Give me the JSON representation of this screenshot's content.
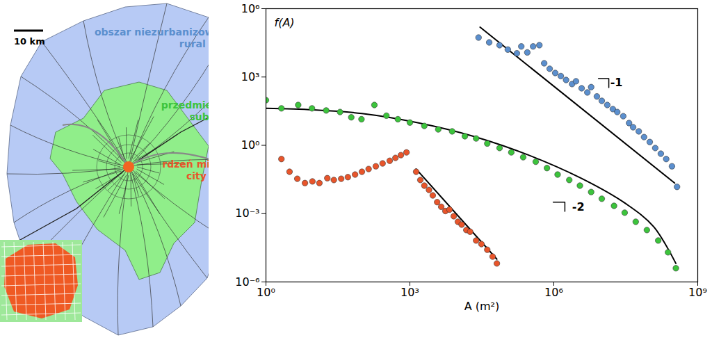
{
  "map": {
    "scale_bar": "10 km"
  },
  "chart_data": {
    "type": "scatter",
    "log": true,
    "x_label": "A (m²)",
    "y_label": "f(A)",
    "xlim": [
      1,
      1000000000.0
    ],
    "ylim": [
      1e-06,
      1000000.0
    ],
    "xticks": [
      {
        "value": 1,
        "label": "10⁰"
      },
      {
        "value": 1000,
        "label": "10³"
      },
      {
        "value": 1000000,
        "label": "10⁶"
      },
      {
        "value": 1000000000,
        "label": "10⁹"
      }
    ],
    "yticks": [
      {
        "value": 1e-06,
        "label": "10⁻⁶"
      },
      {
        "value": 0.001,
        "label": "10⁻³"
      },
      {
        "value": 1,
        "label": "10⁰"
      },
      {
        "value": 1000,
        "label": "10³"
      },
      {
        "value": 1000000,
        "label": "10⁶"
      }
    ],
    "series": [
      {
        "name": "rural area",
        "name_pl": "obszar niezurbanizowany",
        "color": "#5b8fce",
        "marker": "circle",
        "x": [
          27000.0,
          45000.0,
          74000.0,
          110000.0,
          170000.0,
          210000.0,
          280000.0,
          370000.0,
          500000.0,
          630000.0,
          820000.0,
          1070000.0,
          1400000.0,
          1800000.0,
          2400000.0,
          2900000.0,
          3800000.0,
          5000000.0,
          6000000.0,
          7900000.0,
          10000000.0,
          13000000.0,
          17000000.0,
          21000000.0,
          28000000.0,
          37000000.0,
          45000000.0,
          59000000.0,
          76000000.0,
          100000000.0,
          130000000.0,
          170000000.0,
          220000000.0,
          290000000.0,
          370000000.0
        ],
        "values": [
          54000.0,
          33000.0,
          25000.0,
          16000.0,
          11000.0,
          22000.0,
          12000.0,
          22000.0,
          25000.0,
          4000.0,
          2300.0,
          1500.0,
          1100.0,
          740,
          490,
          650,
          320,
          210,
          360,
          140,
          90,
          59,
          39,
          29,
          19,
          9.5,
          6.2,
          4.1,
          2.3,
          1.4,
          0.76,
          0.43,
          0.25,
          0.12,
          0.015
        ],
        "fit": {
          "x": [
            29000.0,
            330000000.0
          ],
          "values": [
            155000.0,
            0.022
          ]
        }
      },
      {
        "name": "suburbs",
        "name_pl": "przedmieścia",
        "color": "#3cc43c",
        "marker": "circle",
        "x": [
          1,
          2.1,
          4.7,
          9.1,
          18,
          35,
          60,
          98,
          182,
          324,
          562,
          1000,
          2000,
          3900,
          7600,
          14000.0,
          24000.0,
          41000.0,
          74000.0,
          130000.0,
          230000.0,
          420000.0,
          720000.0,
          1200000.0,
          2100000.0,
          3500000.0,
          6000000.0,
          10000000.0,
          18000000.0,
          30000000.0,
          51000000.0,
          87000000.0,
          150000000.0,
          240000000.0,
          350000000.0
        ],
        "values": [
          96,
          42,
          59,
          42,
          34,
          29,
          17,
          14,
          59,
          20,
          14,
          10,
          7.1,
          5.0,
          4.1,
          2.5,
          2.0,
          1.2,
          0.76,
          0.49,
          0.3,
          0.19,
          0.1,
          0.052,
          0.03,
          0.017,
          0.0089,
          0.0045,
          0.0022,
          0.0011,
          0.00044,
          0.00019,
          6.6e-05,
          2e-05,
          4e-06
        ],
        "fit": {
          "x": [
            1,
            9.7,
            100,
            1400,
            21000.0,
            300000.0,
            4400000.0,
            32000000.0,
            120000000.0,
            350000000.0
          ],
          "values": [
            42,
            36,
            25,
            10,
            2.5,
            0.37,
            0.03,
            0.0027,
            0.00027,
            6.5e-06
          ]
        }
      },
      {
        "name": "city core",
        "name_pl": "rdzeń miasta",
        "color": "#e8552b",
        "marker": "circle",
        "x": [
          2.1,
          3.1,
          4.5,
          6.5,
          9.3,
          13,
          19,
          26,
          37,
          51,
          72,
          100,
          138,
          195,
          270,
          380,
          500,
          650,
          850,
          1350,
          1650,
          2000,
          2500,
          3000,
          3700,
          4500,
          5500,
          6700,
          8200,
          10000.0,
          12000.0,
          15000.0,
          18000.0,
          24000.0,
          31000.0,
          41000.0,
          53000.0,
          65000.0
        ],
        "values": [
          0.25,
          0.069,
          0.034,
          0.022,
          0.026,
          0.022,
          0.036,
          0.03,
          0.034,
          0.04,
          0.052,
          0.069,
          0.091,
          0.12,
          0.16,
          0.21,
          0.28,
          0.37,
          0.49,
          0.069,
          0.03,
          0.017,
          0.011,
          0.0063,
          0.0032,
          0.002,
          0.0013,
          0.0015,
          0.00077,
          0.00044,
          0.00033,
          0.00019,
          0.00016,
          6.6e-05,
          4.6e-05,
          2.6e-05,
          1.3e-05,
          6.5e-06
        ],
        "fit": {
          "x": [
            1350,
            65000.0
          ],
          "values": [
            0.091,
            1e-05
          ]
        }
      }
    ],
    "annotations": [
      {
        "text": "-1",
        "x": 15000000.0,
        "y": 560,
        "bracket": {
          "x": [
            8500000.0,
            14000000.0,
            14000000.0
          ],
          "y": [
            850,
            850,
            340
          ]
        }
      },
      {
        "text": "-2",
        "x": 2400000.0,
        "y": 0.0019,
        "bracket": {
          "x": [
            970000.0,
            1700000.0,
            1700000.0
          ],
          "y": [
            0.0032,
            0.0032,
            0.00126
          ]
        }
      }
    ]
  }
}
